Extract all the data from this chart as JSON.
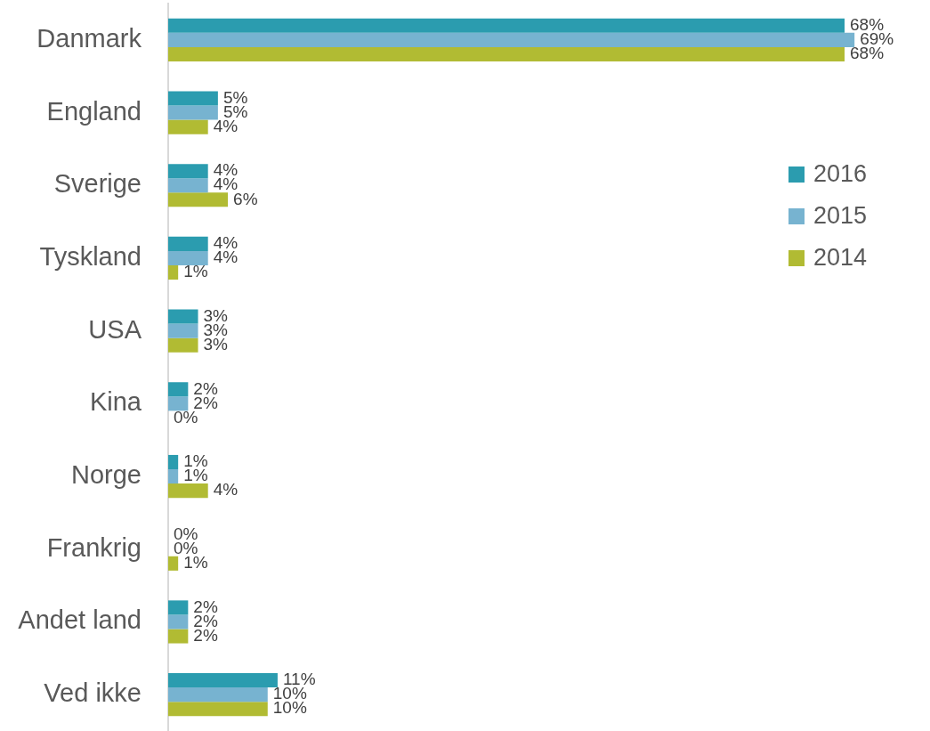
{
  "chart_data": {
    "type": "bar",
    "orientation": "horizontal",
    "tick_labels": "y",
    "legend": "right",
    "categories": [
      "Danmark",
      "England",
      "Sverige",
      "Tyskland",
      "USA",
      "Kina",
      "Norge",
      "Frankrig",
      "Andet land",
      "Ved ikke"
    ],
    "series": [
      {
        "name": "2016",
        "color": "#2b9caf",
        "values": [
          68,
          5,
          4,
          4,
          3,
          2,
          1,
          0,
          2,
          11
        ],
        "value_labels": [
          "68%",
          "5%",
          "4%",
          "4%",
          "3%",
          "2%",
          "1%",
          "0%",
          "2%",
          "11%"
        ]
      },
      {
        "name": "2015",
        "color": "#77b3d0",
        "values": [
          69,
          5,
          4,
          4,
          3,
          2,
          1,
          0,
          2,
          10
        ],
        "value_labels": [
          "69%",
          "5%",
          "4%",
          "4%",
          "3%",
          "2%",
          "1%",
          "0%",
          "2%",
          "10%"
        ]
      },
      {
        "name": "2014",
        "color": "#b1bb33",
        "values": [
          68,
          4,
          6,
          1,
          3,
          0,
          4,
          1,
          2,
          10
        ],
        "value_labels": [
          "68%",
          "4%",
          "6%",
          "1%",
          "3%",
          "0%",
          "4%",
          "1%",
          "2%",
          "10%"
        ]
      }
    ]
  }
}
